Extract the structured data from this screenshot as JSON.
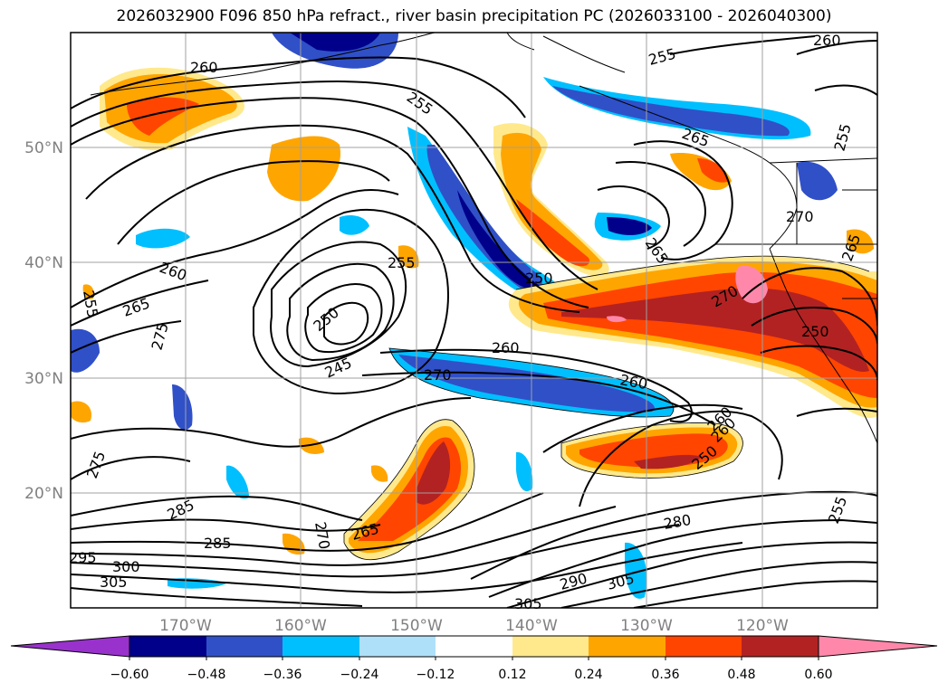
{
  "title": "2026032900 F096 850 hPa refract., river basin precipitation PC (2026033100 - 2026040300)",
  "lat_labels": [
    "50°N",
    "40°N",
    "30°N",
    "20°N"
  ],
  "lon_labels": [
    "170°W",
    "160°W",
    "150°W",
    "140°W",
    "130°W",
    "120°W"
  ],
  "contour_labels": [
    "260",
    "255",
    "260",
    "255",
    "265",
    "270",
    "245",
    "250",
    "255",
    "260",
    "265",
    "275",
    "255",
    "250",
    "260",
    "270",
    "260",
    "265",
    "250",
    "255",
    "260",
    "250",
    "270",
    "285",
    "275",
    "285",
    "270",
    "265",
    "295",
    "300",
    "305",
    "280",
    "290",
    "305",
    "305",
    "255",
    "265",
    "260"
  ],
  "colorbar": {
    "ticks": [
      "−0.60",
      "−0.48",
      "−0.36",
      "−0.24",
      "−0.12",
      "0.12",
      "0.24",
      "0.36",
      "0.48",
      "0.60"
    ],
    "colors": [
      "#9932cc",
      "#00008b",
      "#3050c8",
      "#00bfff",
      "#afe0fa",
      "#ffffff",
      "#ffe98c",
      "#ffa500",
      "#ff4500",
      "#b22222",
      "#ff88aa"
    ]
  }
}
